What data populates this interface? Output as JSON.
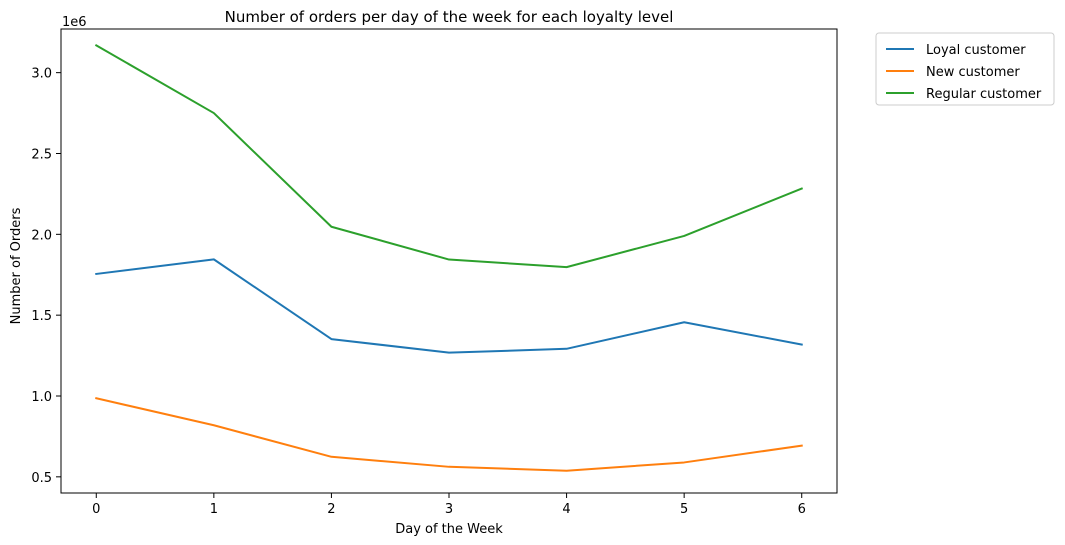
{
  "chart_data": {
    "type": "line",
    "title": "Number of orders per day of the week for each loyalty level",
    "xlabel": "Day of the Week",
    "ylabel": "Number of Orders",
    "offset_text": "1e6",
    "x": [
      0,
      1,
      2,
      3,
      4,
      5,
      6
    ],
    "x_ticks": [
      "0",
      "1",
      "2",
      "3",
      "4",
      "5",
      "6"
    ],
    "y_ticks": [
      {
        "value": 500000,
        "label": "0.5"
      },
      {
        "value": 1000000,
        "label": "1.0"
      },
      {
        "value": 1500000,
        "label": "1.5"
      },
      {
        "value": 2000000,
        "label": "2.0"
      },
      {
        "value": 2500000,
        "label": "2.5"
      },
      {
        "value": 3000000,
        "label": "3.0"
      }
    ],
    "xlim": [
      -0.3,
      6.3
    ],
    "ylim": [
      400000,
      3270000
    ],
    "grid": false,
    "legend_position": "outside-top-right",
    "series": [
      {
        "name": "Loyal customer",
        "color": "#1f77b4",
        "values": [
          1755000,
          1845000,
          1352000,
          1268000,
          1292000,
          1456000,
          1318000
        ]
      },
      {
        "name": "New customer",
        "color": "#ff7f0e",
        "values": [
          986000,
          819000,
          624000,
          562000,
          538000,
          589000,
          693000
        ]
      },
      {
        "name": "Regular customer",
        "color": "#2ca02c",
        "values": [
          3169000,
          2750000,
          2047000,
          1844000,
          1797000,
          1990000,
          2283000
        ]
      }
    ]
  }
}
